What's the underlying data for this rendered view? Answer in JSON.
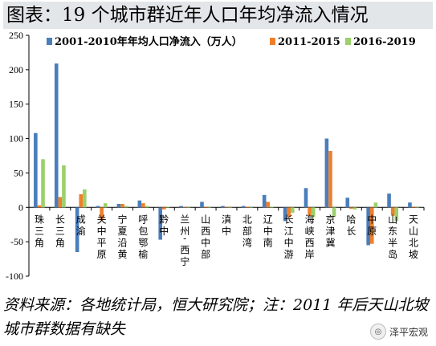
{
  "title": "图表：19 个城市群近年人口年均净流入情况",
  "source_note": "资料来源：各地统计局，恒大研究院；注：2011 年后天山北坡城市群数据有缺失",
  "watermark": "泽平宏观",
  "colors": {
    "s1": "#4a7ebb",
    "s2": "#f07f2a",
    "s3": "#9bd06b",
    "title_bg": "#e3e6e8"
  },
  "chart_data": {
    "type": "bar",
    "ylim": [
      -100,
      250
    ],
    "yticks": [
      -100,
      -50,
      0,
      50,
      100,
      150,
      200,
      250
    ],
    "legend_position": "top",
    "categories": [
      "珠三角",
      "长三角",
      "成渝",
      "关中平原",
      "宁夏沿黄",
      "呼包鄂榆",
      "黔中",
      "兰州-西宁",
      "山西中部",
      "滇中",
      "北部湾",
      "辽中南",
      "长江中游",
      "海峡西岸",
      "京津冀",
      "哈长",
      "中原",
      "山东半岛",
      "天山北坡"
    ],
    "series": [
      {
        "name": "2001-2010年年均人口净流入（万人）",
        "values": [
          108,
          209,
          -65,
          2,
          5,
          10,
          -47,
          2,
          8,
          2,
          2,
          18,
          -20,
          28,
          100,
          14,
          -55,
          20,
          7
        ]
      },
      {
        "name": "2011-2015",
        "values": [
          3,
          15,
          19,
          -18,
          5,
          6,
          -3,
          1,
          0,
          1,
          1,
          8,
          -14,
          -12,
          82,
          -2,
          -53,
          -12,
          0
        ]
      },
      {
        "name": "2016-2019",
        "values": [
          70,
          61,
          26,
          6,
          2,
          2,
          1,
          0,
          0,
          0,
          0,
          1,
          -8,
          -14,
          -14,
          -3,
          7,
          -20,
          0
        ]
      }
    ]
  }
}
